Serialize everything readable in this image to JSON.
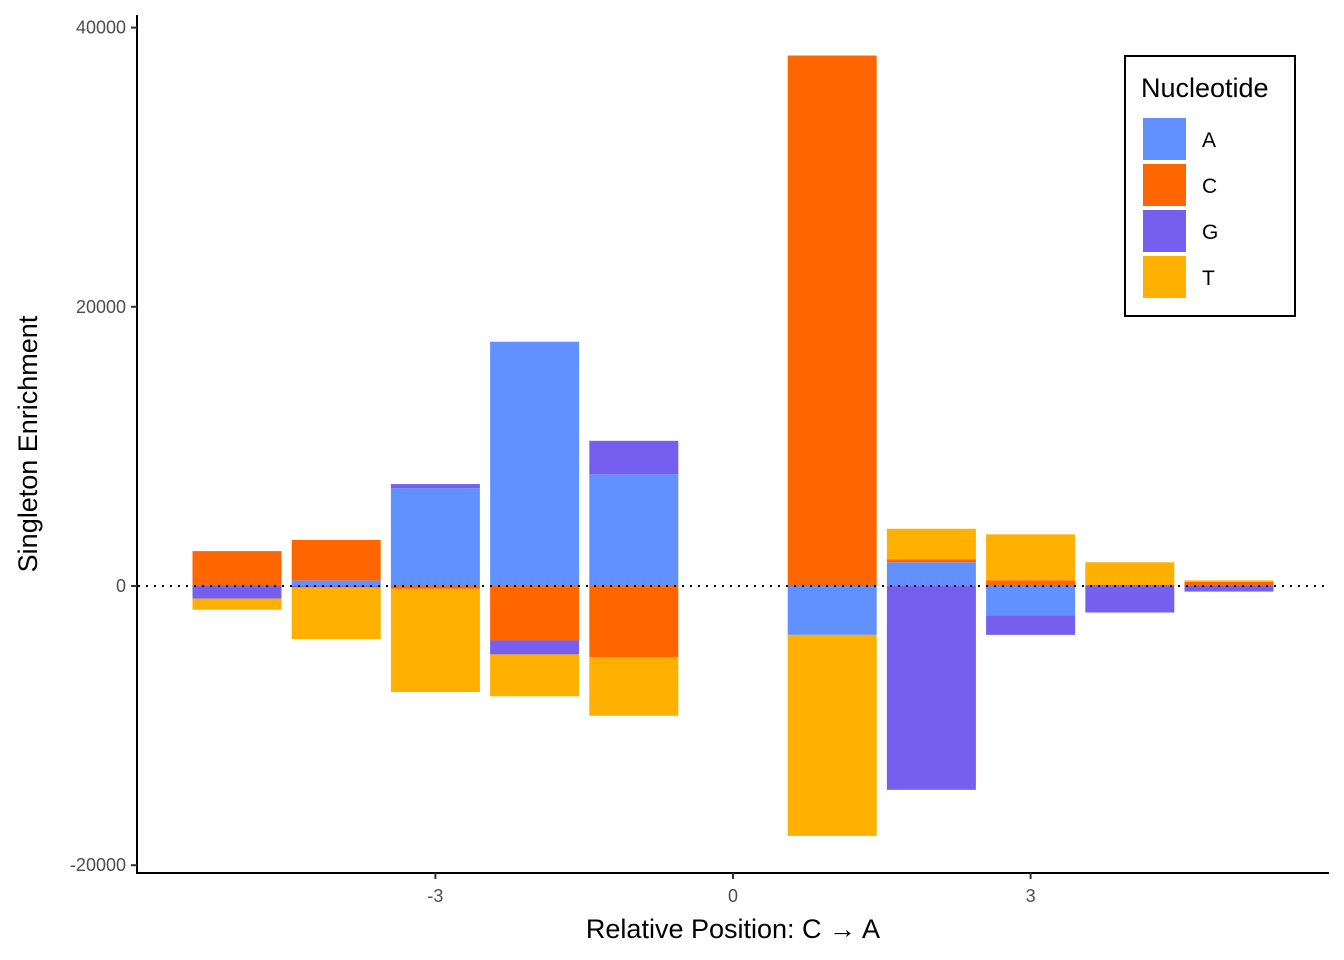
{
  "chart_data": {
    "type": "bar",
    "stacked": true,
    "diverging": true,
    "title": "",
    "xlabel": "Relative Position: C → A",
    "ylabel": "Singleton Enrichment",
    "xlim": [
      -6,
      6
    ],
    "ylim": [
      -20000,
      40000
    ],
    "xticks": [
      -3,
      0,
      3
    ],
    "yticks": [
      -20000,
      0,
      20000,
      40000
    ],
    "x": [
      -5,
      -4,
      -3,
      -2,
      -1,
      1,
      2,
      3,
      4,
      5
    ],
    "reference_line": {
      "y": 0,
      "style": "dotted"
    },
    "grid": false,
    "legend": {
      "title": "Nucleotide",
      "position": "top-right"
    },
    "series": [
      {
        "name": "A",
        "color": "#6191FF",
        "values": [
          0,
          400,
          7000,
          17500,
          8000,
          -3500,
          1700,
          -2100,
          0,
          0
        ]
      },
      {
        "name": "C",
        "color": "#FF6600",
        "values": [
          2500,
          2900,
          -200,
          -3900,
          -5100,
          38000,
          200,
          400,
          100,
          300
        ]
      },
      {
        "name": "G",
        "color": "#765EEE",
        "values": [
          -900,
          -100,
          300,
          -1000,
          2400,
          0,
          -14600,
          -1400,
          -1900,
          -400
        ]
      },
      {
        "name": "T",
        "color": "#FFB000",
        "values": [
          -800,
          -3700,
          -7400,
          -3000,
          -4200,
          -14400,
          2200,
          3300,
          1600,
          100
        ]
      }
    ]
  }
}
